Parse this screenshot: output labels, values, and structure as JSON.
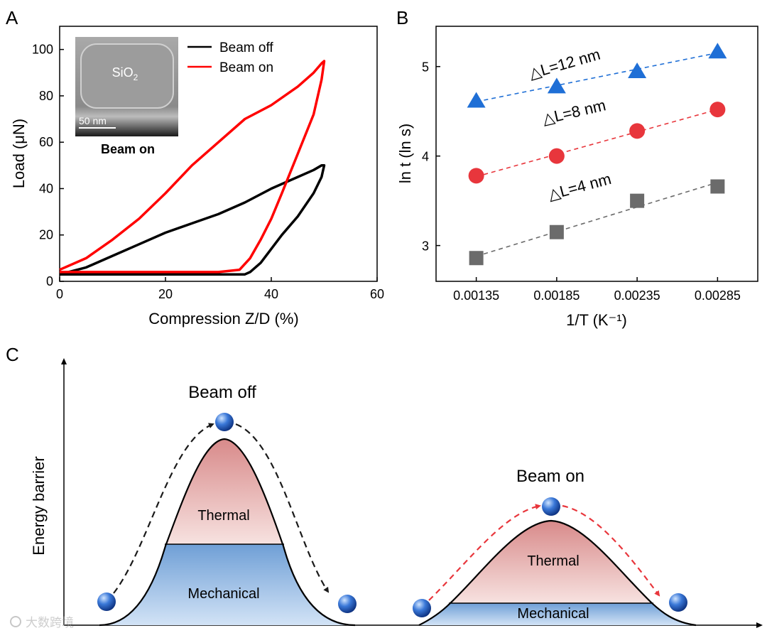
{
  "panels": {
    "a": "A",
    "b": "B",
    "c": "C"
  },
  "watermark": "大数跨境",
  "chart_data": [
    {
      "id": "A",
      "type": "line",
      "xlabel": "Compression Z/D (%)",
      "ylabel": "Load (μN)",
      "xlim": [
        0,
        60
      ],
      "ylim": [
        0,
        110
      ],
      "xticks": [
        0,
        20,
        40,
        60
      ],
      "yticks": [
        0,
        20,
        40,
        60,
        80,
        100
      ],
      "legend_position": "top-center",
      "series": [
        {
          "name": "Beam off",
          "color": "#000000",
          "x": [
            0,
            5,
            10,
            15,
            20,
            25,
            30,
            35,
            40,
            45,
            48,
            49.5,
            50,
            49.5,
            48,
            45,
            42,
            40,
            38,
            36,
            35,
            30,
            20,
            10,
            0
          ],
          "y": [
            3,
            6,
            11,
            16,
            21,
            25,
            29,
            34,
            40,
            45,
            48,
            50,
            50,
            45,
            38,
            28,
            20,
            14,
            8,
            4,
            3,
            3,
            3,
            3,
            3
          ]
        },
        {
          "name": "Beam on",
          "color": "#ff0000",
          "x": [
            0,
            5,
            10,
            15,
            20,
            25,
            30,
            35,
            40,
            45,
            48,
            49.5,
            50,
            49.5,
            48,
            45,
            42,
            40,
            38,
            36,
            34,
            30,
            20,
            10,
            0
          ],
          "y": [
            5,
            10,
            18,
            27,
            38,
            50,
            60,
            70,
            76,
            84,
            90,
            94,
            95,
            87,
            72,
            55,
            38,
            27,
            18,
            10,
            5,
            4,
            4,
            4,
            4
          ]
        }
      ],
      "inset": {
        "material": "SiO",
        "subscript": "2",
        "scale_bar": "50 nm",
        "caption": "Beam on"
      }
    },
    {
      "id": "B",
      "type": "scatter",
      "xlabel": "1/T (K⁻¹)",
      "ylabel": "ln t (ln s)",
      "xlim": [
        0.0011,
        0.0031
      ],
      "ylim": [
        2.6,
        5.45
      ],
      "xticks": [
        0.00135,
        0.00185,
        0.00235,
        0.00285
      ],
      "xtick_labels": [
        "0.00135",
        "0.00185",
        "0.00235",
        "0.00285"
      ],
      "yticks": [
        3,
        4,
        5
      ],
      "series": [
        {
          "name": "△L=12 nm",
          "color": "#1f6fd6",
          "marker": "triangle",
          "x": [
            0.00135,
            0.00185,
            0.00235,
            0.00285
          ],
          "y": [
            4.62,
            4.78,
            4.95,
            5.17
          ]
        },
        {
          "name": "△L=8 nm",
          "color": "#e8363c",
          "marker": "circle",
          "x": [
            0.00135,
            0.00185,
            0.00235,
            0.00285
          ],
          "y": [
            3.78,
            4.0,
            4.28,
            4.52
          ]
        },
        {
          "name": "△L=4 nm",
          "color": "#6b6b6b",
          "marker": "square",
          "x": [
            0.00135,
            0.00185,
            0.00235,
            0.00285
          ],
          "y": [
            2.86,
            3.15,
            3.5,
            3.66
          ]
        }
      ]
    },
    {
      "id": "C",
      "type": "diagram",
      "ylabel": "Energy barrier",
      "barriers": [
        {
          "title": "Beam off",
          "thermal": "Thermal",
          "mechanical": "Mechanical",
          "arrow_color": "#1a1a1a"
        },
        {
          "title": "Beam on",
          "thermal": "Thermal",
          "mechanical": "Mechanical",
          "arrow_color": "#e8363c"
        }
      ]
    }
  ]
}
